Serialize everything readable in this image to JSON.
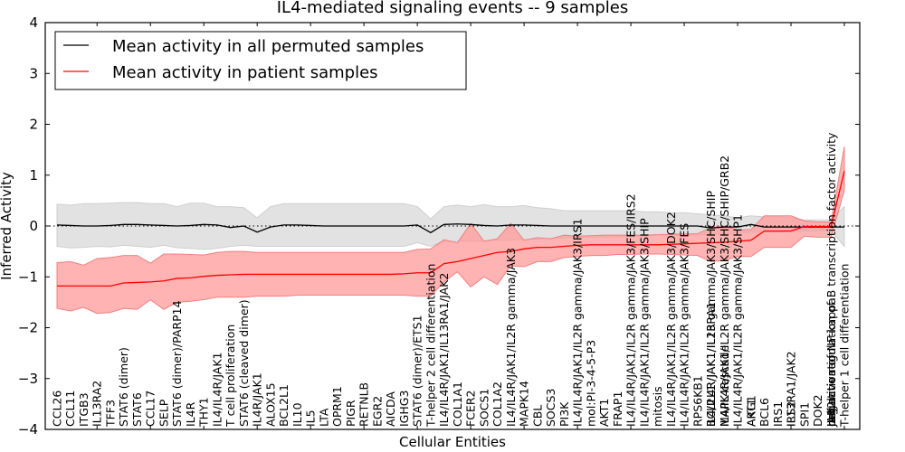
{
  "chart_data": {
    "type": "line",
    "title": "IL4-mediated signaling events -- 9 samples",
    "xlabel": "Cellular Entities",
    "ylabel": "Inferred Activity",
    "ylim": [
      -4,
      4
    ],
    "yticks": [
      -4,
      -3,
      -2,
      -1,
      0,
      1,
      2,
      3,
      4
    ],
    "ytick_labels": [
      "−4",
      "−3",
      "−2",
      "−1",
      "0",
      "1",
      "2",
      "3",
      "4"
    ],
    "grid": false,
    "reference_line": {
      "y": 0,
      "style": "dotted"
    },
    "legend": {
      "placement": "top-left",
      "entries": [
        {
          "label": "Mean activity in all permuted samples",
          "color": "#000000"
        },
        {
          "label": "Mean activity in patient samples",
          "color": "#ff0000"
        }
      ]
    },
    "colors": {
      "permuted_line": "#000000",
      "permuted_band": "#dddddd",
      "patient_line": "#ff0000",
      "patient_band": "#ff9999"
    },
    "x_positions": [
      [
        "CCL26"
      ],
      [
        "CCL11"
      ],
      [
        "ITGB3"
      ],
      [
        "IL13RA2"
      ],
      [
        "TFF3"
      ],
      [
        "STAT6 (dimer)"
      ],
      [
        "STAT6"
      ],
      [
        "CCL17"
      ],
      [
        "SELP"
      ],
      [
        "STAT6 (dimer)/PARP14"
      ],
      [
        "IL4R"
      ],
      [
        "THY1"
      ],
      [
        "IL4/IL4R/JAK1"
      ],
      [
        "T cell proliferation"
      ],
      [
        "STAT6 (cleaved dimer)"
      ],
      [
        "IL4R/JAK1"
      ],
      [
        "ALOX15"
      ],
      [
        "BCL2L1"
      ],
      [
        "IL10"
      ],
      [
        "IL5"
      ],
      [
        "LTA"
      ],
      [
        "OPRM1"
      ],
      [
        "PIGR"
      ],
      [
        "RETNLB"
      ],
      [
        "EGR2"
      ],
      [
        "AICDA"
      ],
      [
        "IGHG3"
      ],
      [
        "STAT6 (dimer)/ETS1"
      ],
      [
        "T-helper 2 cell differentiation"
      ],
      [
        "IL4/IL4R/JAK1/IL13RA1/JAK2"
      ],
      [
        "COL1A1"
      ],
      [
        "FCER2"
      ],
      [
        "SOCS1"
      ],
      [
        "COL1A2"
      ],
      [
        "IL4/IL4R/JAK1/IL2R gamma/JAK3"
      ],
      [
        "MAPK14"
      ],
      [
        "CBL"
      ],
      [
        "SOCS3"
      ],
      [
        "PI3K"
      ],
      [
        "IL4/IL4R/JAK1/IL2R gamma/JAK3/IRS1"
      ],
      [
        "mol:PI-3-4-5-P3"
      ],
      [
        "AKT1"
      ],
      [
        "FRAP1"
      ],
      [
        "IL4/IL4R/JAK1/IL2R gamma/JAK3/FES/IRS2"
      ],
      [
        "IL4/IL4R/JAK1/IL2R gamma/JAK3/SHIP"
      ],
      [
        "mitosis"
      ],
      [
        "IL4/IL4R/JAK1/IL2R gamma/JAK3/DOK2"
      ],
      [
        "IL4/IL4R/JAK1/IL2R gamma/JAK3/FES"
      ],
      [
        "RPS6KB1"
      ],
      [
        "IL4/IL4R/JAK1/IL2R gamma/JAK3/SHC/SHIP",
        "IL4/IL4R/JAK1/IL13RA1",
        "BCL2L1"
      ],
      [
        "IL4/IL4R/JAK1/IL2R gamma/JAK3/SHC/SHIP/GRB2",
        "MAPK cascade",
        "IL4/IL4R/JAK1"
      ],
      [
        "IL4/IL4R/JAK1/IL2R gamma/JAK3/SHP1"
      ],
      [
        "ARG1",
        "AKT1"
      ],
      [
        "BCL6"
      ],
      [
        "IRS1"
      ],
      [
        "IL13RA1/JAK2",
        "IRS2"
      ],
      [
        "SPI1"
      ],
      [
        "DOK2"
      ],
      [
        "regulation of NF-kappaB transcription factor activity",
        "negative regulation of",
        "cell activation",
        "JAK2",
        "IL4"
      ],
      [
        "T-helper 1 cell differentiation"
      ]
    ],
    "series": [
      {
        "name": "Mean activity in all permuted samples",
        "mean": [
          0.02,
          0.01,
          0.0,
          0.0,
          0.01,
          0.03,
          0.03,
          0.02,
          0.01,
          0.0,
          0.01,
          0.03,
          0.02,
          -0.03,
          0.0,
          -0.12,
          -0.02,
          0.02,
          0.02,
          0.01,
          0.0,
          0.0,
          0.0,
          0.0,
          0.0,
          0.0,
          0.0,
          0.02,
          -0.13,
          0.03,
          0.04,
          0.03,
          0.01,
          0.0,
          0.02,
          0.02,
          0.01,
          0.0,
          0.0,
          0.0,
          0.0,
          0.0,
          0.0,
          0.0,
          0.0,
          0.0,
          0.0,
          0.0,
          0.0,
          -0.04,
          -0.02,
          -0.02,
          0.03,
          -0.02,
          -0.02,
          -0.02,
          -0.02,
          -0.02,
          -0.02,
          -0.02
        ],
        "upper": [
          0.43,
          0.41,
          0.44,
          0.44,
          0.45,
          0.46,
          0.46,
          0.44,
          0.44,
          0.38,
          0.45,
          0.45,
          0.38,
          0.38,
          0.36,
          0.16,
          0.38,
          0.44,
          0.44,
          0.44,
          0.44,
          0.44,
          0.44,
          0.44,
          0.44,
          0.44,
          0.44,
          0.38,
          0.14,
          0.38,
          0.41,
          0.38,
          0.42,
          0.38,
          0.38,
          0.4,
          0.36,
          0.34,
          0.3,
          0.3,
          0.3,
          0.3,
          0.3,
          0.3,
          0.28,
          0.28,
          0.26,
          0.26,
          0.24,
          0.22,
          0.2,
          0.16,
          0.2,
          0.18,
          0.18,
          0.16,
          0.12,
          0.12,
          0.12,
          0.38
        ],
        "lower": [
          -0.4,
          -0.43,
          -0.42,
          -0.4,
          -0.41,
          -0.38,
          -0.4,
          -0.42,
          -0.38,
          -0.43,
          -0.44,
          -0.46,
          -0.44,
          -0.4,
          -0.38,
          -0.4,
          -0.4,
          -0.4,
          -0.4,
          -0.4,
          -0.4,
          -0.4,
          -0.4,
          -0.4,
          -0.4,
          -0.4,
          -0.4,
          -0.33,
          -0.4,
          -0.3,
          -0.3,
          -0.3,
          -0.3,
          -0.28,
          -0.28,
          -0.26,
          -0.26,
          -0.24,
          -0.24,
          -0.22,
          -0.22,
          -0.22,
          -0.22,
          -0.2,
          -0.2,
          -0.18,
          -0.18,
          -0.18,
          -0.18,
          -0.16,
          -0.16,
          -0.14,
          -0.12,
          -0.12,
          -0.12,
          -0.1,
          -0.1,
          -0.1,
          -0.1,
          -0.4
        ]
      },
      {
        "name": "Mean activity in patient samples",
        "mean": [
          -1.18,
          -1.18,
          -1.18,
          -1.18,
          -1.18,
          -1.12,
          -1.11,
          -1.1,
          -1.08,
          -1.03,
          -1.02,
          -0.99,
          -0.97,
          -0.96,
          -0.95,
          -0.95,
          -0.95,
          -0.95,
          -0.95,
          -0.95,
          -0.95,
          -0.95,
          -0.95,
          -0.95,
          -0.95,
          -0.95,
          -0.94,
          -0.92,
          -0.92,
          -0.74,
          -0.7,
          -0.64,
          -0.58,
          -0.52,
          -0.5,
          -0.45,
          -0.42,
          -0.42,
          -0.4,
          -0.38,
          -0.37,
          -0.37,
          -0.37,
          -0.37,
          -0.37,
          -0.37,
          -0.36,
          -0.35,
          -0.34,
          -0.33,
          -0.32,
          -0.3,
          -0.28,
          -0.1,
          -0.1,
          -0.1,
          -0.01,
          -0.01,
          -0.01,
          1.08
        ],
        "upper": [
          -0.72,
          -0.7,
          -0.77,
          -0.64,
          -0.62,
          -0.58,
          -0.58,
          -0.73,
          -0.55,
          -0.55,
          -0.56,
          -0.57,
          -0.52,
          -0.5,
          -0.5,
          -0.52,
          -0.52,
          -0.52,
          -0.52,
          -0.52,
          -0.52,
          -0.52,
          -0.52,
          -0.52,
          -0.52,
          -0.52,
          -0.52,
          -0.46,
          -0.45,
          -0.27,
          -0.33,
          0.05,
          -0.3,
          -0.25,
          0.05,
          -0.28,
          -0.23,
          -0.25,
          -0.18,
          -0.2,
          -0.19,
          -0.18,
          -0.18,
          -0.18,
          -0.18,
          -0.17,
          -0.16,
          -0.16,
          -0.15,
          -0.03,
          0.0,
          -0.08,
          -0.07,
          0.2,
          0.2,
          0.2,
          0.1,
          0.08,
          0.08,
          1.56
        ],
        "lower": [
          -1.62,
          -1.67,
          -1.6,
          -1.72,
          -1.7,
          -1.62,
          -1.64,
          -1.45,
          -1.64,
          -1.5,
          -1.48,
          -1.45,
          -1.4,
          -1.4,
          -1.4,
          -1.38,
          -1.38,
          -1.38,
          -1.36,
          -1.36,
          -1.36,
          -1.36,
          -1.36,
          -1.36,
          -1.36,
          -1.36,
          -1.36,
          -1.38,
          -1.38,
          -1.1,
          -0.9,
          -1.2,
          -1.0,
          -1.15,
          -0.78,
          -0.8,
          -0.7,
          -0.7,
          -0.62,
          -0.6,
          -0.58,
          -0.58,
          -0.56,
          -0.56,
          -0.55,
          -0.55,
          -0.56,
          -0.57,
          -0.58,
          -0.7,
          -0.68,
          -0.6,
          -0.6,
          -0.42,
          -0.42,
          -0.42,
          -0.2,
          -0.22,
          -0.22,
          0.7
        ]
      }
    ]
  }
}
